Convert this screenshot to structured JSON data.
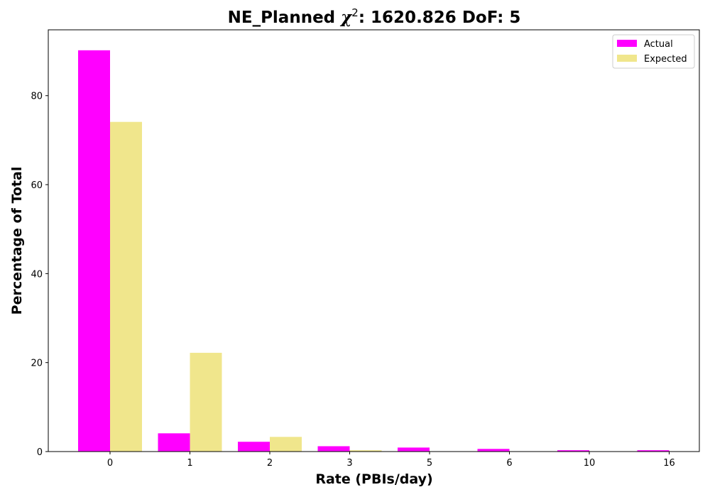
{
  "chart_data": {
    "type": "bar",
    "title_prefix": "NE_Planned ",
    "title_chi": "χ",
    "title_chi_exp": "2",
    "title_suffix": ": 1620.826 DoF: 5",
    "xlabel": "Rate (PBIs/day)",
    "ylabel": "Percentage of Total",
    "categories": [
      "0",
      "1",
      "2",
      "3",
      "5",
      "6",
      "10",
      "16"
    ],
    "series": [
      {
        "name": "Actual",
        "color": "#ff00ff",
        "values": [
          90.2,
          4.1,
          2.2,
          1.2,
          0.9,
          0.6,
          0.3,
          0.3
        ]
      },
      {
        "name": "Expected",
        "color": "#f0e68c",
        "values": [
          74.1,
          22.2,
          3.3,
          0.3,
          0.0,
          0.0,
          0.0,
          0.0
        ]
      }
    ],
    "yticks": [
      0,
      20,
      40,
      60,
      80
    ],
    "ylim": [
      0,
      94.8
    ],
    "legend": "top-right",
    "grid": false
  }
}
